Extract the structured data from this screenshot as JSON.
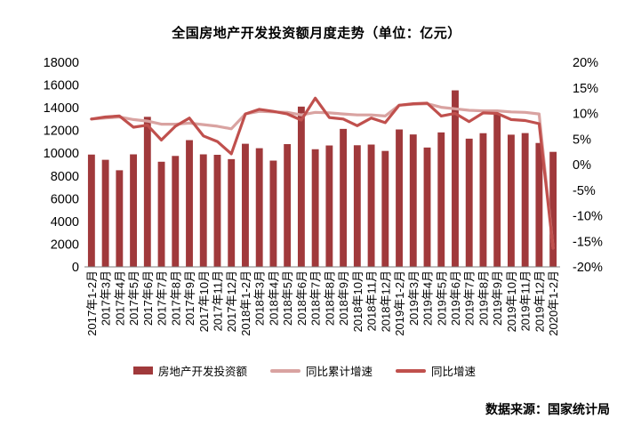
{
  "chart_data": {
    "type": "bar",
    "title": "全国房地产开发投资额月度走势（单位：亿元）",
    "categories": [
      "2017年1-2月",
      "2017年3月",
      "2017年4月",
      "2017年5月",
      "2017年6月",
      "2017年7月",
      "2017年8月",
      "2017年9月",
      "2017年10月",
      "2017年11月",
      "2017年12月",
      "2018年1-2月",
      "2018年3月",
      "2018年4月",
      "2018年5月",
      "2018年6月",
      "2018年7月",
      "2018年8月",
      "2018年9月",
      "2018年10月",
      "2018年11月",
      "2018年12月",
      "2019年1-2月",
      "2019年3月",
      "2019年4月",
      "2019年5月",
      "2019年6月",
      "2019年7月",
      "2019年8月",
      "2019年9月",
      "2019年10月",
      "2019年11月",
      "2019年12月",
      "2020年1-2月"
    ],
    "x_tick_labels": [
      "2017年1-2月",
      "2017年3月",
      "2017年4月",
      "2017年5月",
      "2017年6月",
      "2017年7月",
      "2017年8月",
      "2017年9月",
      "2017年10月",
      "2017年11月",
      "2017年12月",
      "2018年1-2月",
      "2018年3月",
      "2018年4月",
      "2018年5月",
      "2018年6月",
      "2018年7月",
      "2018年8月",
      "2018年9月",
      "2018年10月",
      "2018年11月",
      "2018年12月",
      "2019年1-2月",
      "2019年3月",
      "2019年4月",
      "2019年5月",
      "2019年6月",
      "2019年7月",
      "2019年8月",
      "2019年9月",
      "2019年10月",
      "2019年11月",
      "2019年12月",
      "2020年1-2月"
    ],
    "series": [
      {
        "name": "房地产开发投资额",
        "kind": "bar",
        "axis": "left",
        "color": "#a0393b",
        "values": [
          9880,
          9420,
          8500,
          9900,
          13200,
          9250,
          9760,
          11150,
          9900,
          9860,
          9480,
          10830,
          10440,
          9350,
          10800,
          14100,
          10350,
          10680,
          12140,
          10700,
          10760,
          10200,
          12090,
          11650,
          10500,
          11830,
          15530,
          11280,
          11760,
          13450,
          11630,
          11770,
          10900,
          10120
        ]
      },
      {
        "name": "同比累计增速",
        "kind": "line",
        "axis": "right",
        "color": "#d9a3a1",
        "unit": "%",
        "values": [
          8.9,
          9.1,
          9.3,
          8.8,
          8.5,
          7.9,
          7.9,
          8.1,
          7.8,
          7.5,
          7.0,
          9.9,
          10.4,
          10.3,
          10.2,
          9.7,
          10.2,
          10.1,
          9.9,
          9.7,
          9.7,
          9.5,
          11.6,
          11.8,
          11.9,
          11.2,
          10.9,
          10.6,
          10.5,
          10.5,
          10.3,
          10.2,
          9.9,
          -16.3
        ]
      },
      {
        "name": "同比增速",
        "kind": "line",
        "axis": "right",
        "color": "#c0504d",
        "unit": "%",
        "values": [
          8.9,
          9.3,
          9.5,
          7.3,
          7.7,
          4.8,
          7.5,
          9.1,
          5.6,
          4.5,
          2.1,
          9.9,
          10.8,
          10.4,
          9.9,
          8.7,
          13.0,
          9.2,
          8.9,
          7.6,
          9.1,
          8.2,
          11.6,
          11.9,
          12.0,
          9.5,
          10.0,
          8.4,
          10.1,
          10.0,
          8.8,
          8.6,
          8.0,
          -16.3
        ]
      }
    ],
    "y_left": {
      "lim": [
        0,
        18000
      ],
      "ticks": [
        "0",
        "2000",
        "4000",
        "6000",
        "8000",
        "10000",
        "12000",
        "14000",
        "16000",
        "18000"
      ]
    },
    "y_right": {
      "lim": [
        -20,
        20
      ],
      "ticks": [
        "-20%",
        "-15%",
        "-10%",
        "-5%",
        "0%",
        "5%",
        "10%",
        "15%",
        "20%"
      ]
    },
    "grid": false,
    "legend": {
      "position": "bottom",
      "labels": [
        "房地产开发投资额",
        "同比累计增速",
        "同比增速"
      ]
    },
    "source": "数据来源：国家统计局"
  }
}
